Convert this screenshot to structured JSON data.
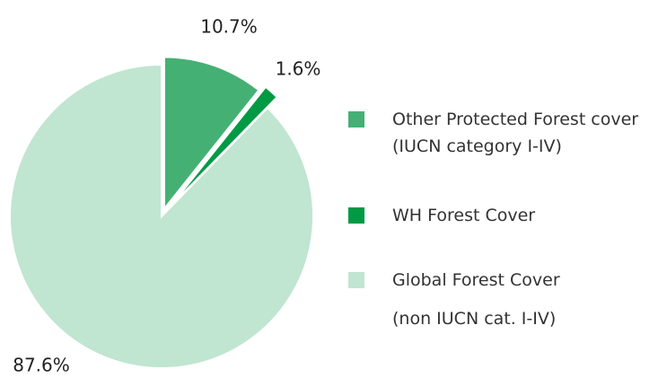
{
  "chart_data": {
    "type": "pie",
    "series": [
      {
        "name": "Other Protected Forest cover\n(IUCN category I-IV)",
        "color": "#45b073",
        "values": [
          10.7
        ],
        "value_labels": [
          "10.7%"
        ]
      },
      {
        "name": "WH Forest Cover",
        "color": "#009a44",
        "values": [
          1.6
        ],
        "value_labels": [
          "1.6%"
        ]
      },
      {
        "name": "Global Forest Cover\n(non IUCN cat. I-IV)",
        "color": "#c0e5d1",
        "values": [
          87.6
        ],
        "value_labels": [
          "87.6%"
        ]
      }
    ]
  }
}
